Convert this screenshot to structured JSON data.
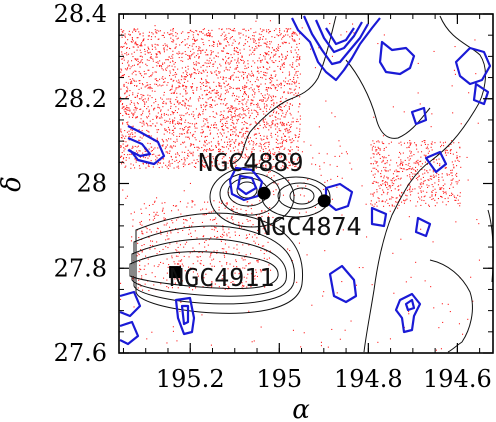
{
  "chart_data": {
    "type": "scatter",
    "xlabel": "α",
    "ylabel": "δ",
    "xlim": [
      195.36,
      194.52
    ],
    "ylim": [
      27.6,
      28.4
    ],
    "x_reversed": true,
    "x_ticks": [
      {
        "value": 195.2,
        "label": "195.2"
      },
      {
        "value": 195.0,
        "label": "195"
      },
      {
        "value": 194.8,
        "label": "194.8"
      },
      {
        "value": 194.6,
        "label": "194.6"
      }
    ],
    "y_ticks": [
      {
        "value": 27.6,
        "label": "27.6"
      },
      {
        "value": 27.8,
        "label": "27.8"
      },
      {
        "value": 28.0,
        "label": "28"
      },
      {
        "value": 28.2,
        "label": "28.2"
      },
      {
        "value": 28.4,
        "label": "28.4"
      }
    ],
    "galaxies": [
      {
        "name": "NGC4889",
        "x": 195.034,
        "y": 27.977
      },
      {
        "name": "NGC4874",
        "x": 194.899,
        "y": 27.959
      },
      {
        "name": "NGC4911",
        "x": 195.234,
        "y": 27.791
      }
    ],
    "colors": {
      "points": "#ff2020",
      "contour_black": "#111111",
      "contour_blue": "#1a1ad6",
      "marker": "#000000"
    }
  }
}
